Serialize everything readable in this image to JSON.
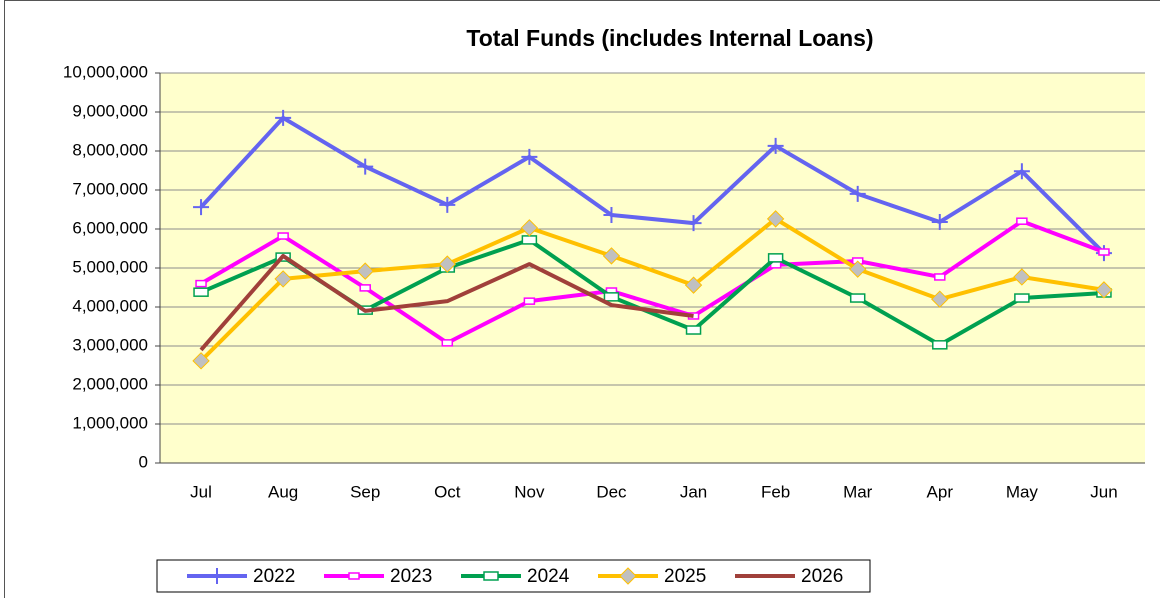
{
  "chart_data": {
    "type": "line",
    "title": "Total Funds (includes Internal Loans)",
    "categories": [
      "Jul",
      "Aug",
      "Sep",
      "Oct",
      "Nov",
      "Dec",
      "Jan",
      "Feb",
      "Mar",
      "Apr",
      "May",
      "Jun"
    ],
    "series": [
      {
        "name": "2022",
        "color": "#6464f0",
        "marker": "plus",
        "values": [
          6560000,
          8850000,
          7600000,
          6620000,
          7850000,
          6360000,
          6150000,
          8130000,
          6900000,
          6180000,
          7480000,
          5380000
        ]
      },
      {
        "name": "2023",
        "color": "#ff00ff",
        "marker": "dash",
        "values": [
          4600000,
          5820000,
          4490000,
          3080000,
          4150000,
          4410000,
          3770000,
          5080000,
          5180000,
          4770000,
          6200000,
          5410000
        ]
      },
      {
        "name": "2024",
        "color": "#00a050",
        "marker": "square",
        "values": [
          4380000,
          5280000,
          3920000,
          5000000,
          5720000,
          4260000,
          3410000,
          5260000,
          4230000,
          3030000,
          4230000,
          4360000
        ]
      },
      {
        "name": "2025",
        "color": "#ffc000",
        "marker": "diamond",
        "values": [
          2620000,
          4720000,
          4920000,
          5100000,
          6030000,
          5310000,
          4560000,
          6260000,
          4970000,
          4200000,
          4770000,
          4440000
        ]
      },
      {
        "name": "2026",
        "color": "#a0403a",
        "marker": "none",
        "values": [
          2900000,
          5310000,
          3900000,
          4150000,
          5100000,
          4050000,
          3770000,
          null,
          null,
          null,
          null,
          null
        ]
      }
    ],
    "ylim": [
      0,
      10000000
    ],
    "yticks": [
      0,
      {
        "value": 1000000,
        "label": "1,000,000"
      },
      {
        "value": 2000000,
        "label": "2,000,000"
      },
      {
        "value": 3000000,
        "label": "3,000,000"
      },
      {
        "value": 4000000,
        "label": "4,000,000"
      },
      {
        "value": 5000000,
        "label": "5,000,000"
      },
      {
        "value": 6000000,
        "label": "6,000,000"
      },
      {
        "value": 7000000,
        "label": "7,000,000"
      },
      {
        "value": 8000000,
        "label": "8,000,000"
      },
      {
        "value": 9000000,
        "label": "9,000,000"
      },
      {
        "value": 10000000,
        "label": "10,000,000"
      }
    ],
    "grid": true,
    "legend": "bottom",
    "background": "#ffffcc"
  }
}
